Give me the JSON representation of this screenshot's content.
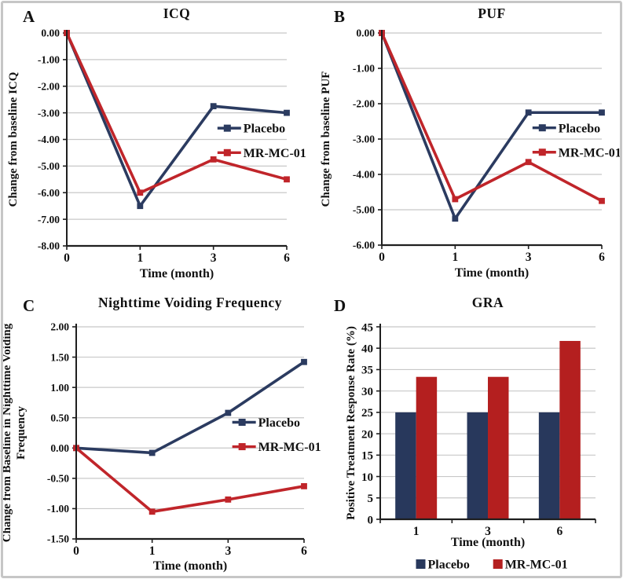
{
  "figure": {
    "background": "#ffffff",
    "border_color": "#c6c6c6",
    "accent_colors": {
      "placebo_navy": "#2A3A5E",
      "mr_mc_01_red": "#BE2428"
    }
  },
  "chart_data": [
    {
      "panel_letter": "A",
      "type": "line",
      "title": "ICQ",
      "xlabel": "Time (month)",
      "ylabel": "Change from baseline ICQ",
      "ylabel_lines": [
        "Change from baseline ICQ"
      ],
      "categories": [
        "0",
        "1",
        "3",
        "6"
      ],
      "series": [
        {
          "name": "Placebo",
          "color": "#2B3B60",
          "values": [
            0,
            -6.5,
            -2.75,
            -3.0
          ]
        },
        {
          "name": "MR-MC-01",
          "color": "#C0252A",
          "values": [
            0,
            -6.0,
            -4.75,
            -5.5
          ]
        }
      ],
      "ylim": [
        -8,
        0
      ],
      "ytick_step": 1.0,
      "ytick_decimals": 2,
      "grid": true,
      "legend_position": "inside-right"
    },
    {
      "panel_letter": "B",
      "type": "line",
      "title": "PUF",
      "xlabel": "Time (month)",
      "ylabel": "Change from baseline PUF",
      "ylabel_lines": [
        "Change from baseline PUF"
      ],
      "categories": [
        "0",
        "1",
        "3",
        "6"
      ],
      "series": [
        {
          "name": "Placebo",
          "color": "#2B3B60",
          "values": [
            0,
            -5.25,
            -2.25,
            -2.25
          ]
        },
        {
          "name": "MR-MC-01",
          "color": "#C0252A",
          "values": [
            0,
            -4.7,
            -3.65,
            -4.75
          ]
        }
      ],
      "ylim": [
        -6,
        0
      ],
      "ytick_step": 1.0,
      "ytick_decimals": 2,
      "grid": true,
      "legend_position": "inside-right"
    },
    {
      "panel_letter": "C",
      "type": "line",
      "title": "Nighttime Voiding Frequency",
      "xlabel": "Time (month)",
      "ylabel": "Change from Baseline in Nighttime Voiding Frequency",
      "ylabel_lines": [
        "Change from Baseline in Nighttime Voiding",
        "Frequency"
      ],
      "categories": [
        "0",
        "1",
        "3",
        "6"
      ],
      "series": [
        {
          "name": "Placebo",
          "color": "#2B3B60",
          "values": [
            0,
            -0.08,
            0.58,
            1.42
          ]
        },
        {
          "name": "MR-MC-01",
          "color": "#C0252A",
          "values": [
            0,
            -1.05,
            -0.85,
            -0.63
          ]
        }
      ],
      "ylim": [
        -1.5,
        2.0
      ],
      "ytick_step": 0.5,
      "ytick_decimals": 2,
      "grid": true,
      "legend_position": "inside-right"
    },
    {
      "panel_letter": "D",
      "type": "bar",
      "title": "GRA",
      "xlabel": "Time (month)",
      "ylabel": "Positive Treatment Response Rate (%)",
      "ylabel_lines": [
        "Positive Treatment Response Rate (%)"
      ],
      "categories": [
        "1",
        "3",
        "6"
      ],
      "series": [
        {
          "name": "Placebo",
          "color": "#28385C",
          "values": [
            25,
            25,
            25
          ]
        },
        {
          "name": "MR-MC-01",
          "color": "#B41F1F",
          "values": [
            33.3,
            33.3,
            41.7
          ]
        }
      ],
      "ylim": [
        0,
        45
      ],
      "ytick_step": 5,
      "ytick_decimals": 0,
      "grid": true,
      "legend_position": "bottom"
    }
  ]
}
